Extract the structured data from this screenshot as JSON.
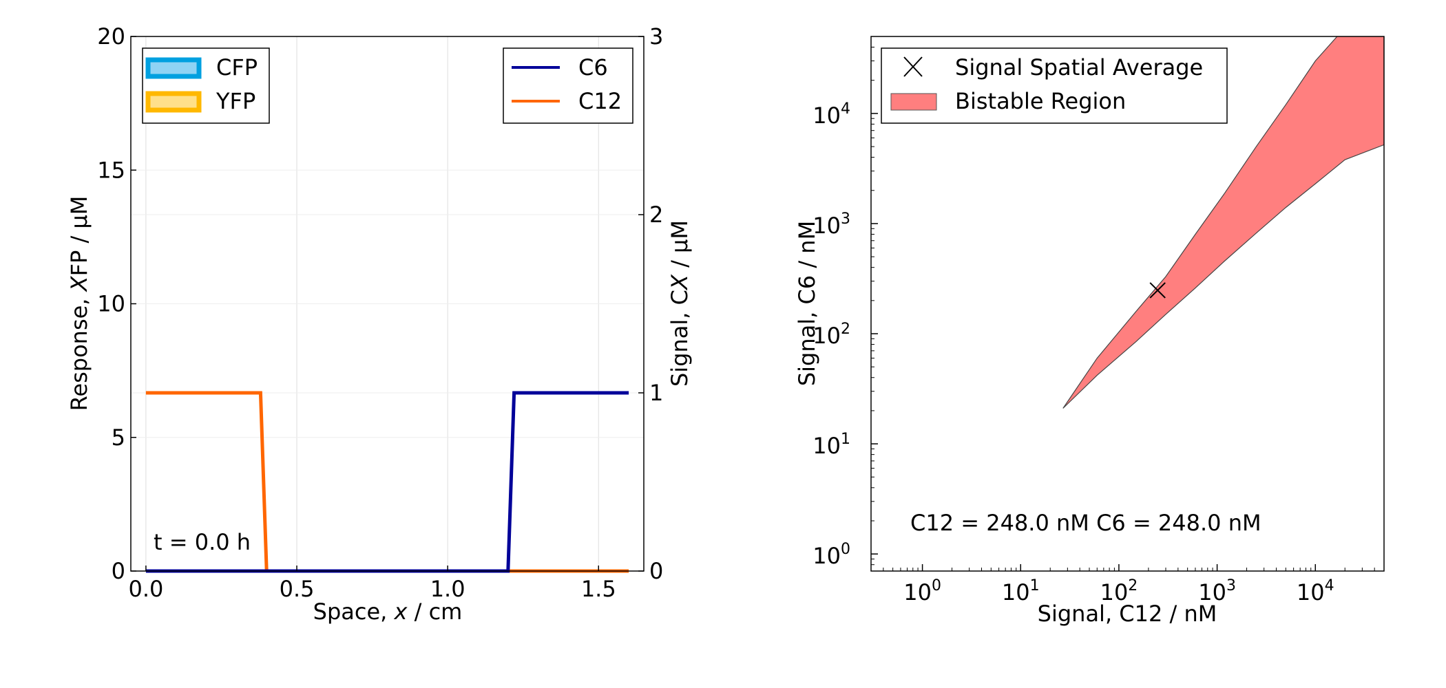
{
  "chart_data": [
    {
      "type": "line",
      "xlabel": "Space, x / cm",
      "ylabel_left": "Response, XFP / µM",
      "ylabel_right": "Signal, CX / µM",
      "xlim": [
        -0.05,
        1.65
      ],
      "ylim_left": [
        0,
        20
      ],
      "ylim_right": [
        0,
        3
      ],
      "x_ticks": [
        "0.0",
        "0.5",
        "1.0",
        "1.5"
      ],
      "y_ticks_left": [
        "0",
        "5",
        "10",
        "15",
        "20"
      ],
      "y_ticks_right": [
        "0",
        "1",
        "2",
        "3"
      ],
      "grid": true,
      "annotation": "t = 0.0 h",
      "legend_left": {
        "placement": "upper-left",
        "entries": [
          {
            "name": "CFP",
            "edge": "#00a0e0",
            "fill": "#8fd3f4"
          },
          {
            "name": "YFP",
            "edge": "#ffb800",
            "fill": "#ffe08a"
          }
        ]
      },
      "legend_right": {
        "placement": "upper-right",
        "entries": [
          {
            "name": "C6",
            "color": "#000099"
          },
          {
            "name": "C12",
            "color": "#ff6600"
          }
        ]
      },
      "series": [
        {
          "name": "C6",
          "axis": "right",
          "color": "#000099",
          "x": [
            0.0,
            1.2,
            1.22,
            1.6
          ],
          "y": [
            0,
            0,
            1,
            1
          ]
        },
        {
          "name": "C12",
          "axis": "right",
          "color": "#ff6600",
          "x": [
            0.0,
            0.38,
            0.4,
            1.6
          ],
          "y": [
            1,
            1,
            0,
            0
          ]
        }
      ]
    },
    {
      "type": "area",
      "xlabel": "Signal, C12 / nM",
      "ylabel": "Signal, C6 / nM",
      "xscale": "log",
      "yscale": "log",
      "xlim": [
        0.3,
        50000
      ],
      "ylim": [
        0.7,
        50000
      ],
      "x_ticks": [
        {
          "base": "10",
          "exp": "0"
        },
        {
          "base": "10",
          "exp": "1"
        },
        {
          "base": "10",
          "exp": "2"
        },
        {
          "base": "10",
          "exp": "3"
        },
        {
          "base": "10",
          "exp": "4"
        }
      ],
      "y_ticks": [
        {
          "base": "10",
          "exp": "0"
        },
        {
          "base": "10",
          "exp": "1"
        },
        {
          "base": "10",
          "exp": "2"
        },
        {
          "base": "10",
          "exp": "3"
        },
        {
          "base": "10",
          "exp": "4"
        }
      ],
      "legend": {
        "placement": "upper-left",
        "entries": [
          {
            "name": "Signal Spatial Average",
            "marker": "x"
          },
          {
            "name": "Bistable Region",
            "color": "#ff7f7f"
          }
        ]
      },
      "bistable_region": {
        "color": "#ff7f7f",
        "upper_boundary": {
          "x": [
            27,
            60,
            150,
            300,
            600,
            1200,
            2500,
            5000,
            10000,
            20000,
            50000
          ],
          "y": [
            21,
            60,
            160,
            330,
            800,
            1900,
            5000,
            12000,
            30000,
            60000,
            60000
          ]
        },
        "lower_boundary": {
          "x": [
            27,
            60,
            150,
            300,
            600,
            1200,
            2500,
            5000,
            10000,
            20000,
            50000
          ],
          "y": [
            21,
            42,
            85,
            150,
            260,
            460,
            820,
            1400,
            2300,
            3800,
            5200
          ]
        }
      },
      "point": {
        "name": "Signal Spatial Average",
        "x": 248.0,
        "y": 248.0
      },
      "annotation": "C12 = 248.0 nM  C6 = 248.0 nM"
    }
  ]
}
